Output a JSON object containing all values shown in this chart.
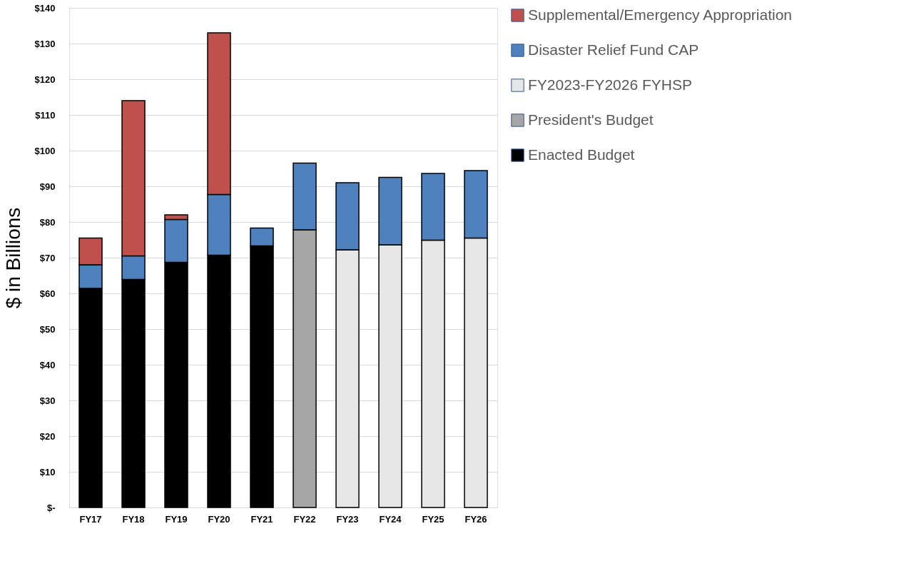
{
  "chart_data": {
    "type": "bar",
    "stacked": true,
    "ylabel": "$ in Billions",
    "categories": [
      "FY17",
      "FY18",
      "FY19",
      "FY20",
      "FY21",
      "FY22",
      "FY23",
      "FY24",
      "FY25",
      "FY26"
    ],
    "series": [
      {
        "name": "Enacted Budget",
        "color": "#000000",
        "values": [
          61.4,
          63.9,
          68.7,
          70.7,
          73.3,
          null,
          null,
          null,
          null,
          null
        ]
      },
      {
        "name": "President's Budget",
        "color": "#a6a6a6",
        "values": [
          null,
          null,
          null,
          null,
          null,
          77.8,
          null,
          null,
          null,
          null
        ]
      },
      {
        "name": "FY2023-FY2026 FYHSP",
        "color": "#e6e6e6",
        "values": [
          null,
          null,
          null,
          null,
          null,
          null,
          72.2,
          73.6,
          74.9,
          75.5
        ]
      },
      {
        "name": "Disaster Relief Fund CAP",
        "color": "#4f81bd",
        "values": [
          6.6,
          6.6,
          12.0,
          17.0,
          5.0,
          18.7,
          18.8,
          18.9,
          18.7,
          18.9
        ]
      },
      {
        "name": "Supplemental/Emergency Appropriation",
        "color": "#c0504d",
        "values": [
          7.5,
          43.5,
          1.3,
          45.3,
          null,
          null,
          null,
          null,
          null,
          null
        ]
      }
    ],
    "ylim": [
      0,
      140
    ],
    "yticks": [
      {
        "value": 0,
        "label": "$-"
      },
      {
        "value": 10,
        "label": "$10"
      },
      {
        "value": 20,
        "label": "$20"
      },
      {
        "value": 30,
        "label": "$30"
      },
      {
        "value": 40,
        "label": "$40"
      },
      {
        "value": 50,
        "label": "$50"
      },
      {
        "value": 60,
        "label": "$60"
      },
      {
        "value": 70,
        "label": "$70"
      },
      {
        "value": 80,
        "label": "$80"
      },
      {
        "value": 90,
        "label": "$90"
      },
      {
        "value": 100,
        "label": "$100"
      },
      {
        "value": 110,
        "label": "$110"
      },
      {
        "value": 120,
        "label": "$120"
      },
      {
        "value": 130,
        "label": "$130"
      },
      {
        "value": 140,
        "label": "$140"
      }
    ],
    "grid": "y",
    "legend": "right"
  }
}
